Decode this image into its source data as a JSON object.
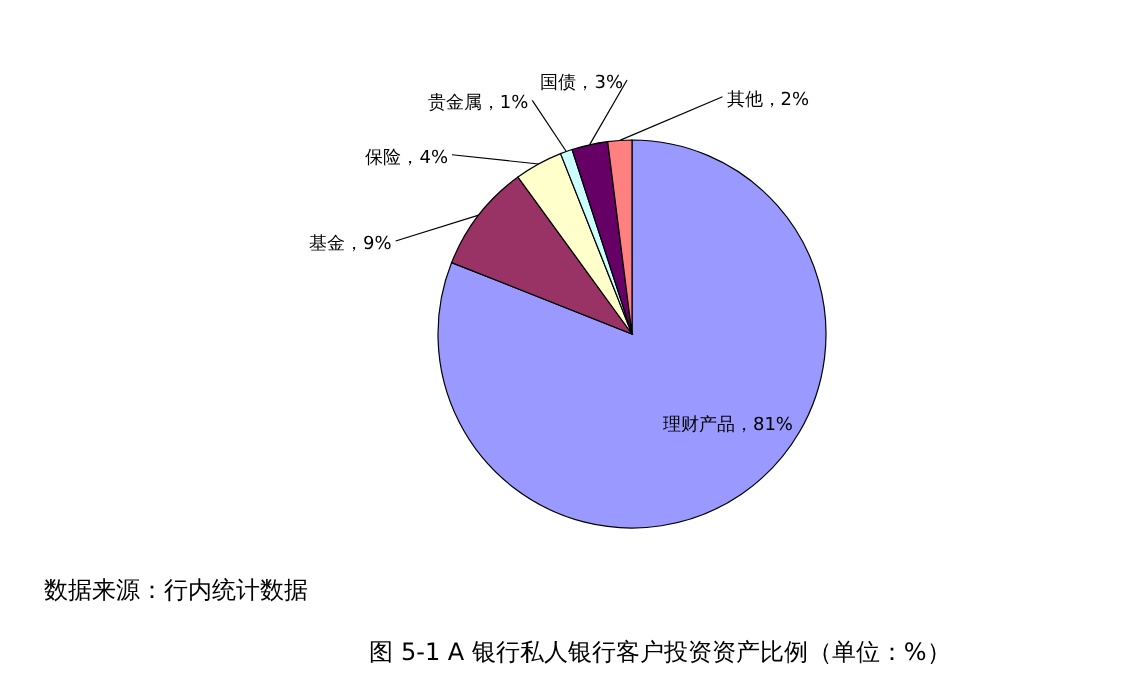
{
  "chart_data": {
    "type": "pie",
    "title": "图 5-1 A 银行私人银行客户投资资产比例（单位：%）",
    "categories": [
      "理财产品",
      "基金",
      "保险",
      "贵金属",
      "国债",
      "其他"
    ],
    "values": [
      81,
      9,
      4,
      1,
      3,
      2
    ],
    "colors": [
      "#9999ff",
      "#993366",
      "#ffffcc",
      "#ccffff",
      "#660066",
      "#ff8080"
    ],
    "value_labels": [
      "，81%",
      "，9%",
      "，4%",
      "，1%",
      "，3%",
      "，2%"
    ],
    "annotations": [
      "数据来源：行内统计数据"
    ]
  }
}
